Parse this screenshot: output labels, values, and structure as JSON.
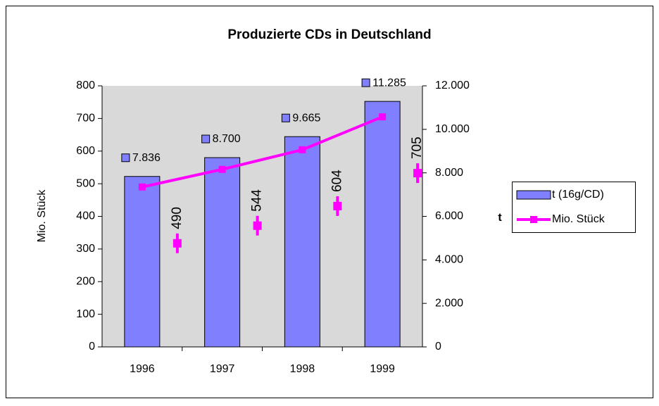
{
  "chart_data": {
    "type": "bar_line",
    "title": "Produzierte CDs  in Deutschland",
    "categories": [
      "1996",
      "1997",
      "1998",
      "1999"
    ],
    "series": [
      {
        "name": "t (16g/CD)",
        "type": "bar",
        "axis": "y2",
        "color": "#8080ff",
        "values": [
          7836,
          8700,
          9665,
          11285
        ],
        "value_labels": [
          "7.836",
          "8.700",
          "9.665",
          "11.285"
        ]
      },
      {
        "name": "Mio. Stück",
        "type": "line",
        "color": "#ff00ff",
        "values": [
          490,
          544,
          604,
          705
        ]
      }
    ],
    "ylabel": "Mio. Stück",
    "y2label": "t",
    "ylim": [
      0,
      800
    ],
    "yticks": [
      0,
      100,
      200,
      300,
      400,
      500,
      600,
      700,
      800
    ],
    "y2lim": [
      0,
      12000
    ],
    "y2ticks": [
      0,
      {
        "value": 2000,
        "label": "2.000"
      },
      {
        "value": 4000,
        "label": "4.000"
      },
      {
        "value": 6000,
        "label": "6.000"
      },
      {
        "value": 8000,
        "label": "8.000"
      },
      {
        "value": 10000,
        "label": "10.000"
      },
      {
        "value": 12000,
        "label": "12.000"
      }
    ],
    "legend": "right"
  }
}
